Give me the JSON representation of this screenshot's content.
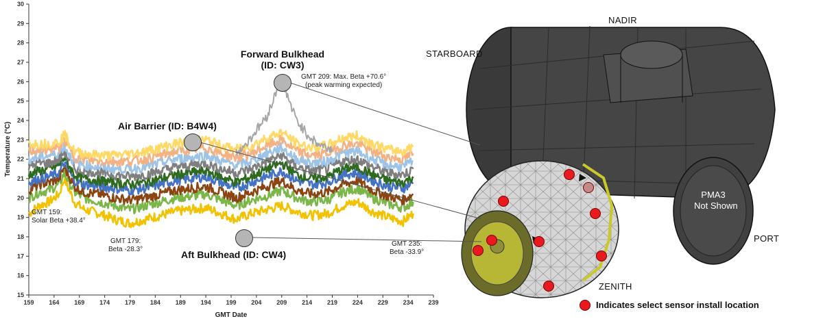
{
  "chart_data": {
    "type": "line",
    "xlabel": "GMT Date",
    "ylabel": "Temperature (°C)",
    "xlim": [
      159,
      239
    ],
    "ylim": [
      15,
      30
    ],
    "xticks": [
      159,
      164,
      169,
      174,
      179,
      184,
      189,
      194,
      199,
      204,
      209,
      214,
      219,
      224,
      229,
      234,
      239
    ],
    "yticks": [
      15,
      16,
      17,
      18,
      19,
      20,
      21,
      22,
      23,
      24,
      25,
      26,
      27,
      28,
      29,
      30
    ],
    "grid": false,
    "legend": "none",
    "series": [
      {
        "color": "#f2c200",
        "x": [
          159,
          161,
          163,
          165,
          166,
          168,
          170,
          173,
          176,
          179,
          182,
          185,
          188,
          191,
          194,
          197,
          200,
          203,
          206,
          209,
          212,
          215,
          218,
          221,
          224,
          227,
          230,
          233,
          235
        ],
        "values": [
          19.2,
          19.6,
          19.8,
          20.2,
          21.0,
          19.8,
          19.4,
          19.2,
          18.9,
          18.7,
          18.9,
          19.1,
          19.3,
          19.4,
          19.5,
          19.2,
          18.9,
          19.2,
          19.4,
          19.6,
          19.3,
          19.1,
          19.2,
          19.6,
          19.8,
          19.3,
          19.0,
          18.8,
          19.2
        ]
      },
      {
        "color": "#7ab648",
        "x": [
          159,
          161,
          163,
          165,
          166,
          168,
          170,
          173,
          176,
          179,
          182,
          185,
          188,
          191,
          194,
          197,
          200,
          203,
          206,
          209,
          212,
          215,
          218,
          221,
          224,
          227,
          230,
          233,
          235
        ],
        "values": [
          20.0,
          20.3,
          20.4,
          20.7,
          21.3,
          20.3,
          20.0,
          19.8,
          19.6,
          19.4,
          19.6,
          19.8,
          20.0,
          20.1,
          20.2,
          19.9,
          19.6,
          19.9,
          20.1,
          20.4,
          20.0,
          19.8,
          19.9,
          20.3,
          20.5,
          20.0,
          19.7,
          19.5,
          19.8
        ]
      },
      {
        "color": "#8b4513",
        "x": [
          159,
          161,
          163,
          165,
          166,
          168,
          170,
          173,
          176,
          179,
          182,
          185,
          188,
          191,
          194,
          197,
          200,
          203,
          206,
          209,
          212,
          215,
          218,
          221,
          224,
          227,
          230,
          233,
          235
        ],
        "values": [
          20.4,
          20.7,
          20.8,
          21.0,
          21.6,
          20.6,
          20.3,
          20.2,
          20.0,
          19.9,
          20.0,
          20.2,
          20.4,
          20.5,
          20.6,
          20.3,
          20.0,
          20.3,
          20.6,
          20.9,
          20.4,
          20.2,
          20.3,
          20.7,
          20.9,
          20.4,
          20.1,
          19.9,
          20.2
        ]
      },
      {
        "color": "#4472c4",
        "x": [
          159,
          161,
          163,
          165,
          166,
          168,
          170,
          173,
          176,
          179,
          182,
          185,
          188,
          191,
          194,
          197,
          200,
          203,
          206,
          209,
          212,
          215,
          218,
          221,
          224,
          227,
          230,
          233,
          235
        ],
        "values": [
          20.8,
          21.0,
          21.1,
          21.3,
          21.8,
          20.9,
          20.7,
          20.6,
          20.5,
          20.4,
          20.5,
          20.7,
          20.9,
          21.0,
          21.1,
          20.8,
          20.5,
          20.8,
          21.1,
          21.4,
          20.9,
          20.7,
          20.8,
          21.2,
          21.3,
          20.9,
          20.6,
          20.5,
          20.8
        ]
      },
      {
        "color": "#2e6b1f",
        "x": [
          159,
          161,
          163,
          165,
          166,
          168,
          170,
          173,
          176,
          179,
          182,
          185,
          188,
          191,
          194,
          197,
          200,
          203,
          206,
          209,
          212,
          215,
          218,
          221,
          224,
          227,
          230,
          233,
          235
        ],
        "values": [
          21.2,
          21.4,
          21.5,
          21.7,
          22.1,
          21.2,
          21.0,
          20.9,
          20.8,
          20.7,
          20.8,
          21.0,
          21.2,
          21.3,
          21.4,
          21.1,
          20.8,
          21.1,
          21.5,
          21.8,
          21.2,
          21.0,
          21.1,
          21.5,
          21.6,
          21.2,
          20.9,
          20.8,
          21.1
        ]
      },
      {
        "color": "#7f7f7f",
        "x": [
          159,
          161,
          163,
          165,
          166,
          168,
          170,
          173,
          176,
          179,
          182,
          185,
          188,
          191,
          194,
          197,
          200,
          203,
          206,
          209,
          212,
          215,
          218,
          221,
          224,
          227,
          230,
          233,
          235
        ],
        "values": [
          21.6,
          21.8,
          21.8,
          22.0,
          22.4,
          21.5,
          21.4,
          21.3,
          21.2,
          21.1,
          21.2,
          21.4,
          21.6,
          21.7,
          21.8,
          21.5,
          21.3,
          21.5,
          21.9,
          22.2,
          21.6,
          21.4,
          21.5,
          21.9,
          22.0,
          21.6,
          21.3,
          21.2,
          21.5
        ]
      },
      {
        "color": "#9dc3e6",
        "x": [
          159,
          161,
          163,
          165,
          166,
          168,
          170,
          173,
          176,
          179,
          182,
          185,
          188,
          191,
          194,
          197,
          200,
          203,
          206,
          209,
          212,
          215,
          218,
          221,
          224,
          227,
          230,
          233,
          235
        ],
        "values": [
          22.0,
          22.1,
          22.2,
          22.3,
          22.7,
          21.8,
          21.7,
          21.6,
          21.5,
          21.5,
          21.6,
          21.8,
          22.0,
          22.1,
          22.2,
          21.9,
          21.7,
          21.9,
          22.3,
          22.6,
          22.0,
          21.8,
          21.9,
          22.3,
          22.4,
          22.0,
          21.7,
          21.6,
          21.9
        ]
      },
      {
        "color": "#f4b183",
        "x": [
          159,
          161,
          163,
          165,
          166,
          168,
          170,
          173,
          176,
          179,
          182,
          185,
          188,
          191,
          194,
          197,
          200,
          203,
          206,
          209,
          212,
          215,
          218,
          221,
          224,
          227,
          230,
          233,
          235
        ],
        "values": [
          22.4,
          22.5,
          22.5,
          22.6,
          23.0,
          22.1,
          22.0,
          21.9,
          21.9,
          21.9,
          22.0,
          22.2,
          22.4,
          22.5,
          22.6,
          22.3,
          22.1,
          22.3,
          22.7,
          23.0,
          22.4,
          22.2,
          22.3,
          22.7,
          22.8,
          22.4,
          22.1,
          22.0,
          22.3
        ]
      },
      {
        "color": "#ffd966",
        "x": [
          159,
          161,
          163,
          165,
          166,
          168,
          170,
          173,
          176,
          179,
          182,
          185,
          188,
          191,
          194,
          197,
          200,
          203,
          206,
          209,
          212,
          215,
          218,
          221,
          224,
          227,
          230,
          233,
          235
        ],
        "values": [
          22.8,
          22.8,
          22.8,
          22.9,
          23.3,
          22.4,
          22.3,
          22.2,
          22.2,
          22.3,
          22.4,
          22.6,
          22.8,
          22.9,
          23.0,
          22.7,
          22.5,
          22.7,
          23.1,
          23.4,
          22.8,
          22.6,
          22.7,
          23.1,
          23.2,
          22.8,
          22.5,
          22.4,
          22.7
        ]
      },
      {
        "color": "#a6a6a6",
        "x": [
          200,
          202,
          204,
          206,
          207,
          208,
          209,
          210,
          211,
          212,
          214,
          216,
          218,
          219
        ],
        "values": [
          22.3,
          22.8,
          23.5,
          24.2,
          24.8,
          25.6,
          26.0,
          25.4,
          24.6,
          24.0,
          23.3,
          22.8,
          22.6,
          22.5
        ]
      }
    ]
  },
  "callouts": {
    "forward_bulkhead": {
      "title_line1": "Forward Bulkhead",
      "title_line2": "(ID: CW3)"
    },
    "air_barrier": {
      "title": "Air Barrier (ID: B4W4)"
    },
    "aft_bulkhead": {
      "title": "Aft Bulkhead (ID: CW4)"
    }
  },
  "annotations": {
    "gmt159": {
      "line1": "GMT 159:",
      "line2": "Solar Beta +38.4°"
    },
    "gmt179": {
      "line1": "GMT 179:",
      "line2": "Beta -28.3°"
    },
    "gmt209": {
      "line1": "GMT 209: Max. Beta +70.6°",
      "line2": "(peak warming expected)"
    },
    "gmt235": {
      "line1": "GMT 235:",
      "line2": "Beta -33.9°"
    }
  },
  "directions": {
    "nadir": "NADIR",
    "starboard": "STARBOARD",
    "port": "PORT",
    "zenith": "ZENITH"
  },
  "pma3": {
    "line1": "PMA3",
    "line2": "Not Shown"
  },
  "legend": {
    "text": "Indicates select sensor install location",
    "color": "#e8191f"
  }
}
